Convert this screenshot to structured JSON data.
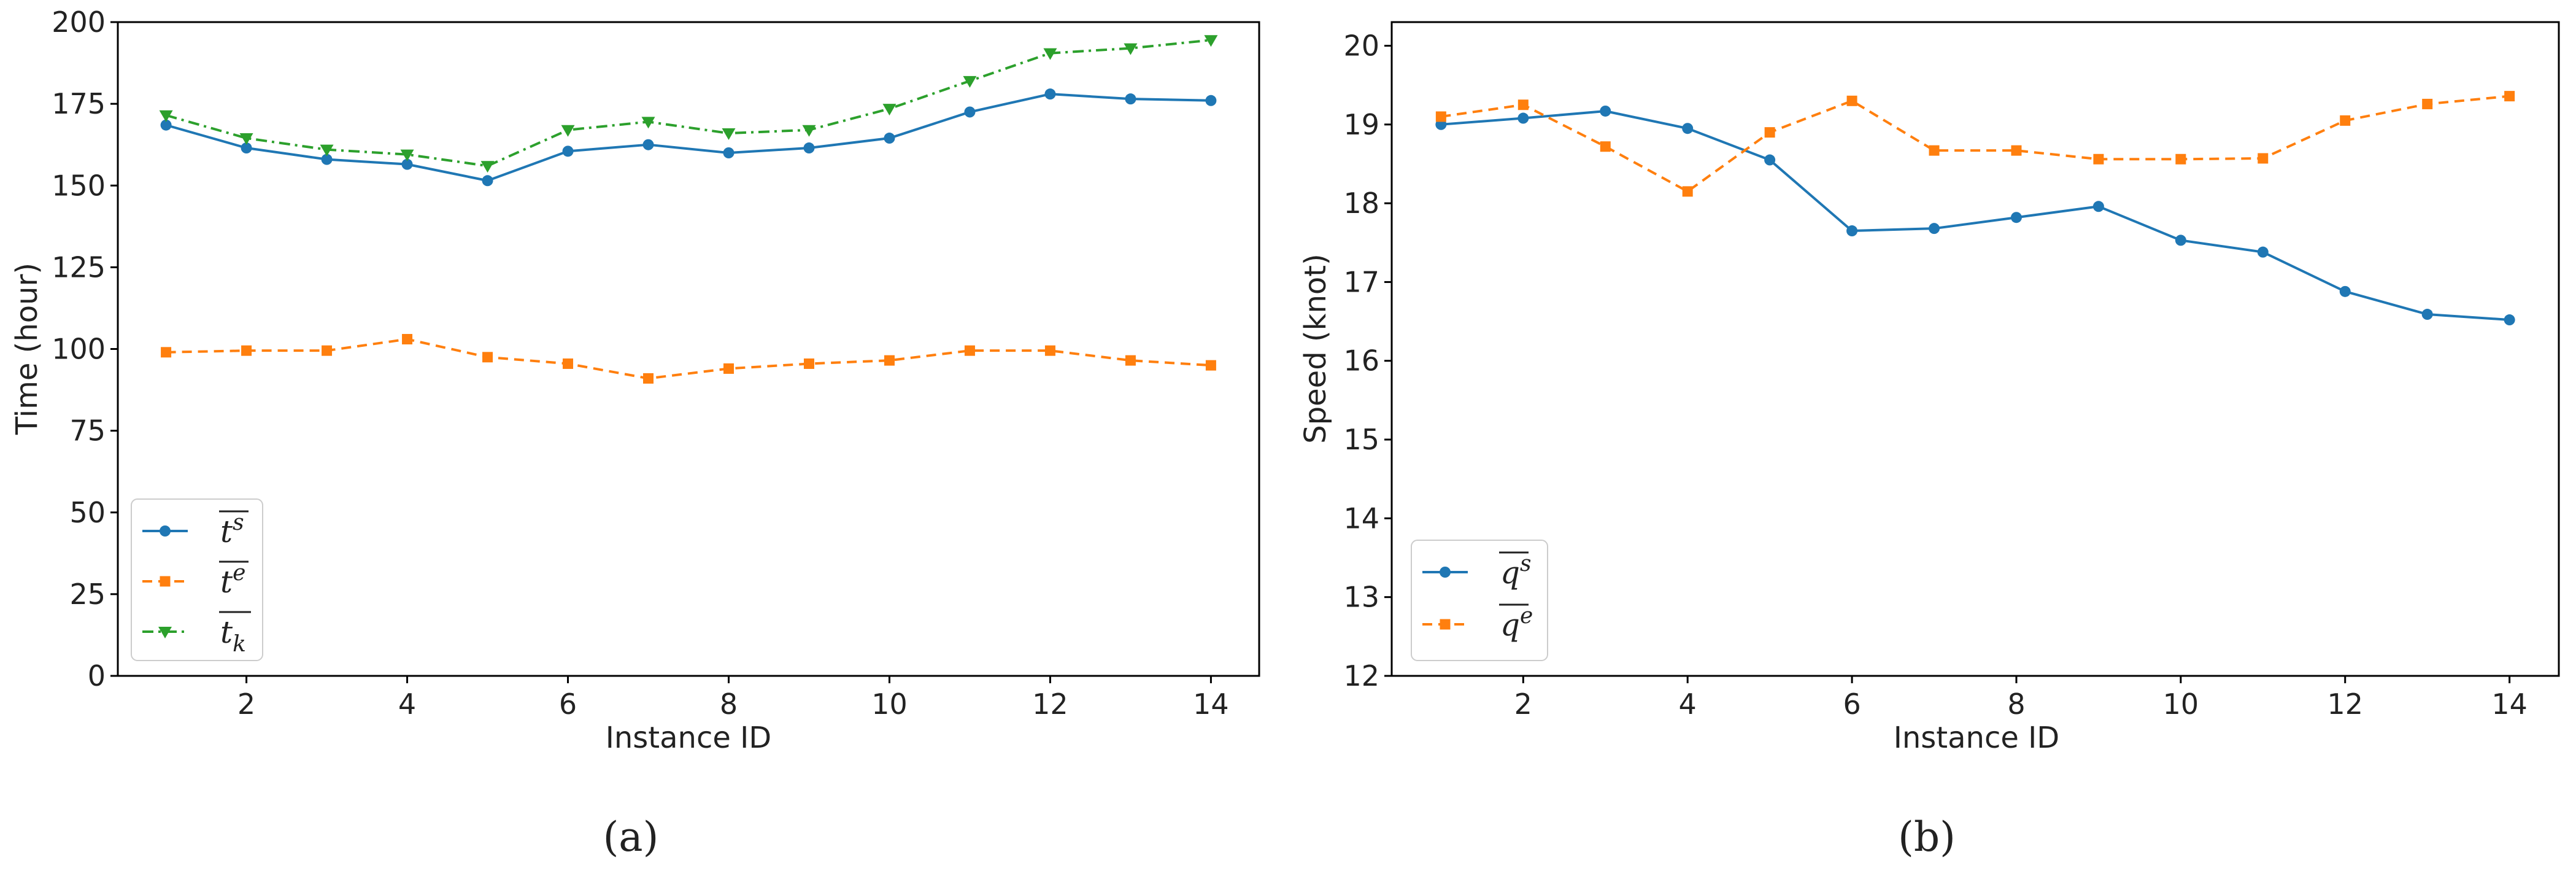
{
  "chart_data": [
    {
      "type": "line",
      "panel": "a",
      "caption": "(a)",
      "xlabel": "Instance ID",
      "ylabel": "Time (hour)",
      "xlim": [
        0.4,
        14.6
      ],
      "ylim": [
        0,
        200
      ],
      "xticks": [
        2,
        4,
        6,
        8,
        10,
        12,
        14
      ],
      "yticks": [
        0,
        25,
        50,
        75,
        100,
        125,
        150,
        175,
        200
      ],
      "x": [
        1,
        2,
        3,
        4,
        5,
        6,
        7,
        8,
        9,
        10,
        11,
        12,
        13,
        14
      ],
      "legend_position": "lower-left",
      "series": [
        {
          "name": "ts",
          "label_base": "t",
          "label_script": "s",
          "script_type": "sup",
          "color": "#1f77b4",
          "marker": "circle",
          "dash": "solid",
          "values": [
            168.5,
            161.5,
            158,
            156.5,
            151.5,
            160.5,
            162.5,
            160,
            161.5,
            164.5,
            172.5,
            178,
            176.5,
            176
          ]
        },
        {
          "name": "te",
          "label_base": "t",
          "label_script": "e",
          "script_type": "sup",
          "color": "#ff7f0e",
          "marker": "square",
          "dash": "dashed",
          "values": [
            99,
            99.5,
            99.5,
            103,
            97.5,
            95.5,
            91,
            94,
            95.5,
            96.5,
            99.5,
            99.5,
            96.5,
            95
          ]
        },
        {
          "name": "tk",
          "label_base": "t",
          "label_script": "k",
          "script_type": "sub",
          "color": "#2ca02c",
          "marker": "triangle-down",
          "dash": "dashdot",
          "values": [
            171.5,
            164.5,
            161,
            159.5,
            156,
            167,
            169.5,
            166,
            167,
            173.5,
            182,
            190.5,
            192,
            194.5
          ]
        }
      ]
    },
    {
      "type": "line",
      "panel": "b",
      "caption": "(b)",
      "xlabel": "Instance ID",
      "ylabel": "Speed (knot)",
      "xlim": [
        0.4,
        14.6
      ],
      "ylim": [
        12,
        20.3
      ],
      "xticks": [
        2,
        4,
        6,
        8,
        10,
        12,
        14
      ],
      "yticks": [
        12,
        13,
        14,
        15,
        16,
        17,
        18,
        19,
        20
      ],
      "x": [
        1,
        2,
        3,
        4,
        5,
        6,
        7,
        8,
        9,
        10,
        11,
        12,
        13,
        14
      ],
      "legend_position": "lower-left",
      "series": [
        {
          "name": "qs",
          "label_base": "q",
          "label_script": "s",
          "script_type": "sup",
          "color": "#1f77b4",
          "marker": "circle",
          "dash": "solid",
          "values": [
            19.0,
            19.08,
            19.17,
            18.95,
            18.55,
            17.65,
            17.68,
            17.82,
            17.96,
            17.53,
            17.38,
            16.88,
            16.59,
            16.52
          ]
        },
        {
          "name": "qe",
          "label_base": "q",
          "label_script": "e",
          "script_type": "sup",
          "color": "#ff7f0e",
          "marker": "square",
          "dash": "dashed",
          "values": [
            19.1,
            19.25,
            18.72,
            18.15,
            18.9,
            19.3,
            18.67,
            18.67,
            18.56,
            18.56,
            18.57,
            19.05,
            19.26,
            19.36
          ]
        }
      ]
    }
  ]
}
